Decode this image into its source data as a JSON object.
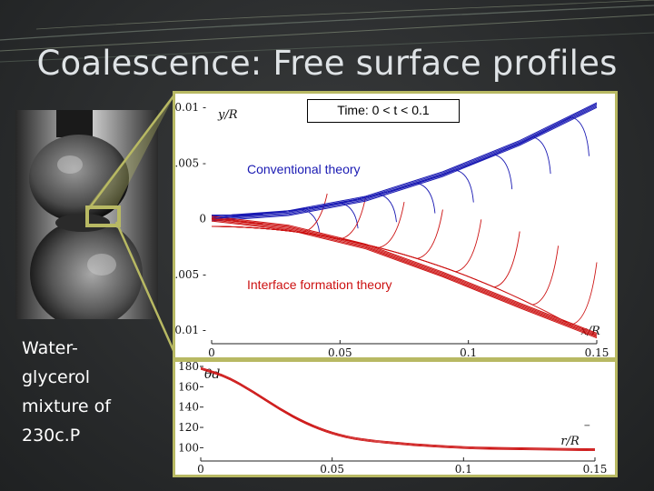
{
  "slide": {
    "title": "Coalescence: Free surface profiles",
    "caption_lines": [
      "Water-",
      "glycerol",
      "mixture of",
      " 230c.P"
    ]
  },
  "figure": {
    "time_label": "Time: 0 < t < 0.1",
    "conventional_label": "Conventional theory",
    "interface_label": "Interface formation theory",
    "colors": {
      "conventional": "#1a1ab3",
      "interface": "#cc1111",
      "frame": "#b8b963"
    }
  },
  "chart_data": [
    {
      "type": "line",
      "xlabel": "x/R",
      "ylabel": "y/R",
      "xlim": [
        0,
        0.15
      ],
      "ylim": [
        -0.01,
        0.01
      ],
      "x_ticks": [
        "0",
        "0.05",
        "0.1",
        "0.15"
      ],
      "y_ticks": [
        "0.01",
        "0.005",
        "0",
        "-0.005",
        "-0.01"
      ],
      "series": [
        {
          "name": "Conventional theory",
          "color": "#1a1ab3",
          "x": [
            0.0,
            0.03,
            0.06,
            0.09,
            0.12,
            0.15
          ],
          "y": [
            0.0,
            0.0005,
            0.0018,
            0.004,
            0.0068,
            0.0102
          ]
        },
        {
          "name": "Interface formation theory",
          "color": "#cc1111",
          "x": [
            0.0,
            0.03,
            0.06,
            0.09,
            0.12,
            0.15
          ],
          "y": [
            0.0,
            -0.0008,
            -0.0025,
            -0.005,
            -0.0078,
            -0.0105
          ]
        }
      ]
    },
    {
      "type": "line",
      "xlabel": "r/R",
      "ylabel": "θd",
      "xlim": [
        0,
        0.15
      ],
      "ylim": [
        95,
        180
      ],
      "x_ticks": [
        "0",
        "0.05",
        "0.1",
        "0.15"
      ],
      "y_ticks": [
        "180",
        "160",
        "140",
        "120",
        "100"
      ],
      "series": [
        {
          "color": "#cc1111",
          "x": [
            0.0,
            0.01,
            0.02,
            0.03,
            0.04,
            0.05,
            0.06,
            0.08,
            0.1,
            0.12,
            0.15
          ],
          "y": [
            178,
            170,
            155,
            138,
            124,
            114,
            108,
            103,
            100,
            99,
            98
          ]
        }
      ]
    }
  ]
}
